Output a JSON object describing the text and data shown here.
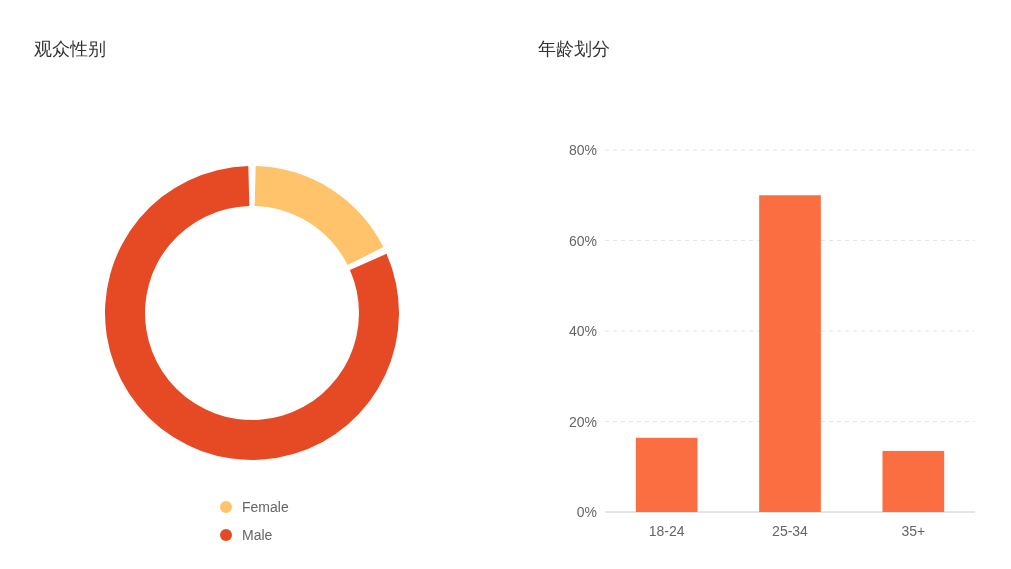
{
  "chart_data": [
    {
      "type": "donut",
      "title": "观众性别",
      "categories": [
        "Female",
        "Male"
      ],
      "values": [
        18,
        82
      ],
      "colors": [
        "#ffc36b",
        "#e64a25"
      ],
      "legend": "bottom"
    },
    {
      "type": "bar",
      "title": "年龄划分",
      "categories": [
        "18-24",
        "25-34",
        "35+"
      ],
      "values": [
        16.4,
        70,
        13.5
      ],
      "color": "#fb6e41",
      "ylim": [
        0,
        80
      ],
      "yticks": [
        {
          "value": 0,
          "label": "0%"
        },
        {
          "value": 20,
          "label": "20%"
        },
        {
          "value": 40,
          "label": "40%"
        },
        {
          "value": 60,
          "label": "60%"
        },
        {
          "value": 80,
          "label": "80%"
        }
      ],
      "grid": "y"
    }
  ]
}
